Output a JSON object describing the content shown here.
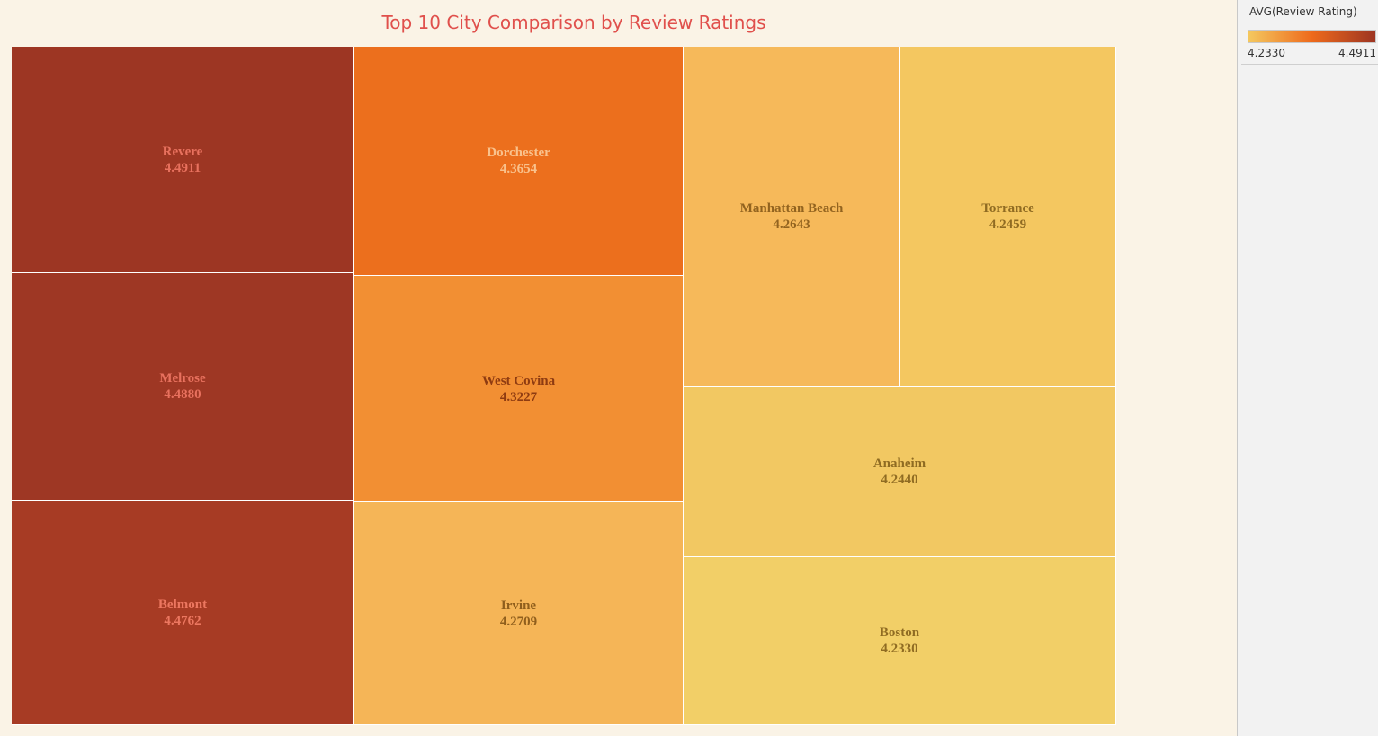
{
  "chart_data": {
    "type": "treemap",
    "title": "Top 10 City Comparison by Review Ratings",
    "color_legend": {
      "title": "AVG(Review Rating)",
      "min": 4.233,
      "max": 4.4911,
      "min_label": "4.2330",
      "max_label": "4.4911",
      "colors": [
        "#f4c85f",
        "#ee6a1c",
        "#9d3522"
      ]
    },
    "items": [
      {
        "city": "Revere",
        "value": "4.4911",
        "color": "#9d3623",
        "text_color": "#e8715e"
      },
      {
        "city": "Melrose",
        "value": "4.4880",
        "color": "#9e3724",
        "text_color": "#e8715e"
      },
      {
        "city": "Belmont",
        "value": "4.4762",
        "color": "#a73b24",
        "text_color": "#ec7760"
      },
      {
        "city": "Dorchester",
        "value": "4.3654",
        "color": "#ec6f1d",
        "text_color": "#f9c28d"
      },
      {
        "city": "West Covina",
        "value": "4.3227",
        "color": "#f28f33",
        "text_color": "#8e3b11"
      },
      {
        "city": "Irvine",
        "value": "4.2709",
        "color": "#f5b557",
        "text_color": "#8f5e1c"
      },
      {
        "city": "Manhattan Beach",
        "value": "4.2643",
        "color": "#f6b95a",
        "text_color": "#92631f"
      },
      {
        "city": "Torrance",
        "value": "4.2459",
        "color": "#f4c760",
        "text_color": "#8f6b22"
      },
      {
        "city": "Anaheim",
        "value": "4.2440",
        "color": "#f2c862",
        "text_color": "#8f6b22"
      },
      {
        "city": "Boston",
        "value": "4.2330",
        "color": "#f2cf67",
        "text_color": "#8f6b22"
      }
    ]
  }
}
